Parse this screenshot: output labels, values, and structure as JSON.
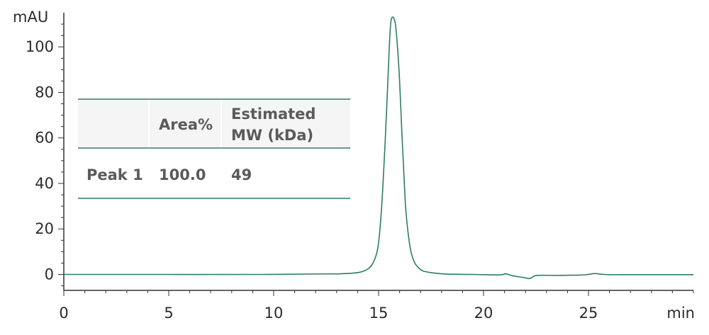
{
  "chart_data": {
    "type": "line",
    "xlabel": "min",
    "ylabel": "mAU",
    "xlim": [
      0,
      30
    ],
    "ylim": [
      -7,
      115
    ],
    "x_ticks": [
      0,
      5,
      10,
      15,
      20,
      25
    ],
    "y_ticks": [
      0,
      20,
      40,
      60,
      80,
      100
    ],
    "series": [
      {
        "color": "#2e7d64",
        "x": [
          0,
          5,
          9.5,
          12,
          13.2,
          13.8,
          14.2,
          14.5,
          14.7,
          14.9,
          15.0,
          15.1,
          15.2,
          15.3,
          15.4,
          15.5,
          15.55,
          15.6,
          15.7,
          15.8,
          15.9,
          16.0,
          16.1,
          16.2,
          16.3,
          16.5,
          16.7,
          16.9,
          17.1,
          17.5,
          18.0,
          18.5,
          19.5,
          20.5,
          20.9,
          21.05,
          21.4,
          21.8,
          22.0,
          22.2,
          22.4,
          22.6,
          23.5,
          24.5,
          24.9,
          25.3,
          25.6,
          26.0,
          27.0,
          28.0,
          29.0,
          30.0
        ],
        "y": [
          0,
          0,
          0,
          0.2,
          0.3,
          0.6,
          1.2,
          2.5,
          4.5,
          9.0,
          14,
          24,
          38,
          56,
          76,
          98,
          107,
          112,
          113,
          110,
          100,
          85,
          64,
          45,
          28,
          12,
          5.5,
          3,
          1.6,
          0.8,
          0.3,
          0.1,
          0,
          -0.2,
          -0.1,
          0.3,
          -0.6,
          -1.2,
          -1.5,
          -1.8,
          -0.8,
          -0.4,
          -0.4,
          -0.3,
          -0.1,
          0.4,
          0.1,
          -0.1,
          -0.1,
          -0.1,
          -0.1,
          -0.1
        ]
      }
    ]
  },
  "table": {
    "header": [
      "",
      "Area%",
      "Estimated\nMW (kDa)"
    ],
    "rows": [
      [
        "Peak 1",
        "100.0",
        "49"
      ]
    ]
  },
  "colors": {
    "line": "#2e7d64",
    "table_rule": "#2e7d64",
    "table_header_bg": "#f5f5f5",
    "axis": "#333333"
  }
}
